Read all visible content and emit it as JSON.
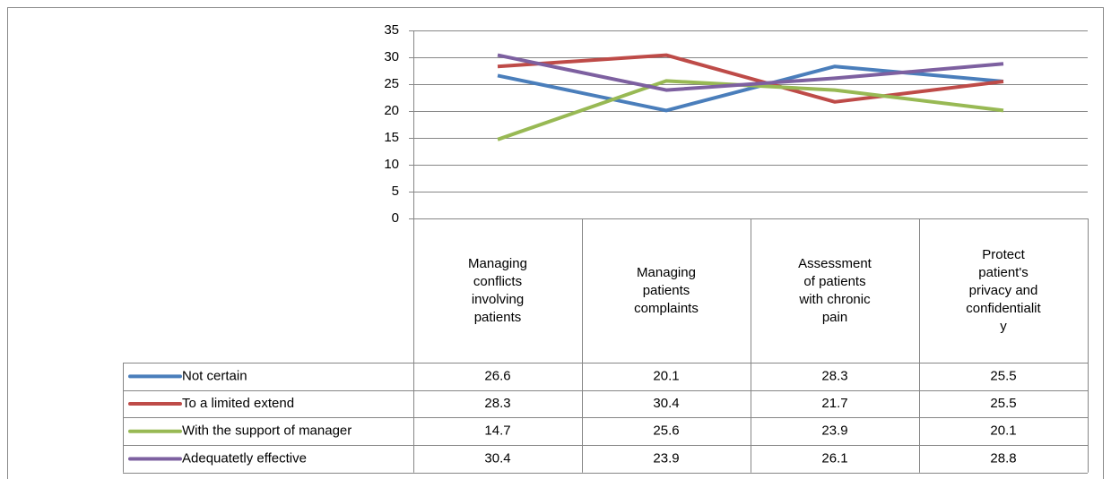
{
  "chart_data": {
    "type": "line",
    "categories": [
      "Managing conflicts involving patients",
      "Managing patients complaints",
      "Assessment of patients with chronic pain",
      "Protect patient's privacy and confidentiality"
    ],
    "series": [
      {
        "name": "Not certain",
        "color": "#4a7ebb",
        "values": [
          26.6,
          20.1,
          28.3,
          25.5
        ]
      },
      {
        "name": "To a limited extend",
        "color": "#be4b48",
        "values": [
          28.3,
          30.4,
          21.7,
          25.5
        ]
      },
      {
        "name": "With the support of manager",
        "color": "#98b954",
        "values": [
          14.7,
          25.6,
          23.9,
          20.1
        ]
      },
      {
        "name": "Adequatetly effective",
        "color": "#7d60a0",
        "values": [
          30.4,
          23.9,
          26.1,
          28.8
        ]
      }
    ],
    "ylim": [
      0,
      35
    ],
    "yticks": [
      0,
      5,
      10,
      15,
      20,
      25,
      30,
      35
    ],
    "grid": true,
    "data_table": true
  }
}
